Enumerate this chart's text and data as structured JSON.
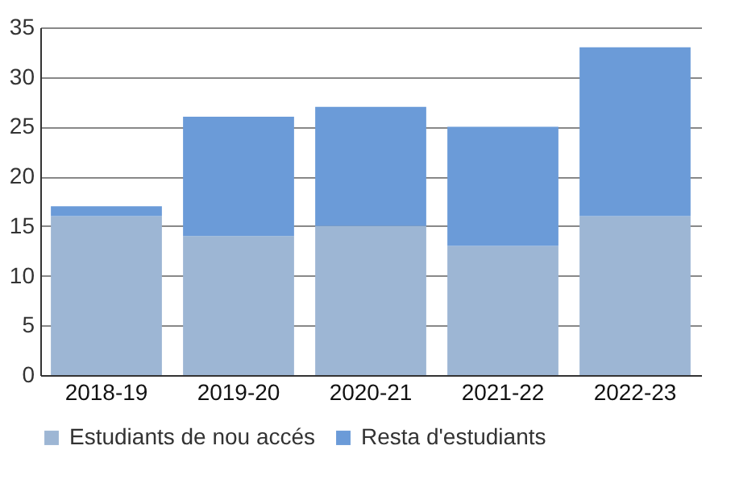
{
  "chart_data": {
    "type": "bar",
    "stacked": true,
    "categories": [
      "2018-19",
      "2019-20",
      "2020-21",
      "2021-22",
      "2022-23"
    ],
    "series": [
      {
        "name": "Estudiants de nou accés",
        "color": "#9db6d4",
        "values": [
          16,
          14,
          15,
          13,
          16
        ]
      },
      {
        "name": "Resta d'estudiants",
        "color": "#6b9bd8",
        "values": [
          1,
          12,
          12,
          12,
          17
        ]
      }
    ],
    "ylim": [
      0,
      35
    ],
    "yticks": [
      0,
      5,
      10,
      15,
      20,
      25,
      30,
      35
    ],
    "grid": "y",
    "legend": "bottom"
  }
}
